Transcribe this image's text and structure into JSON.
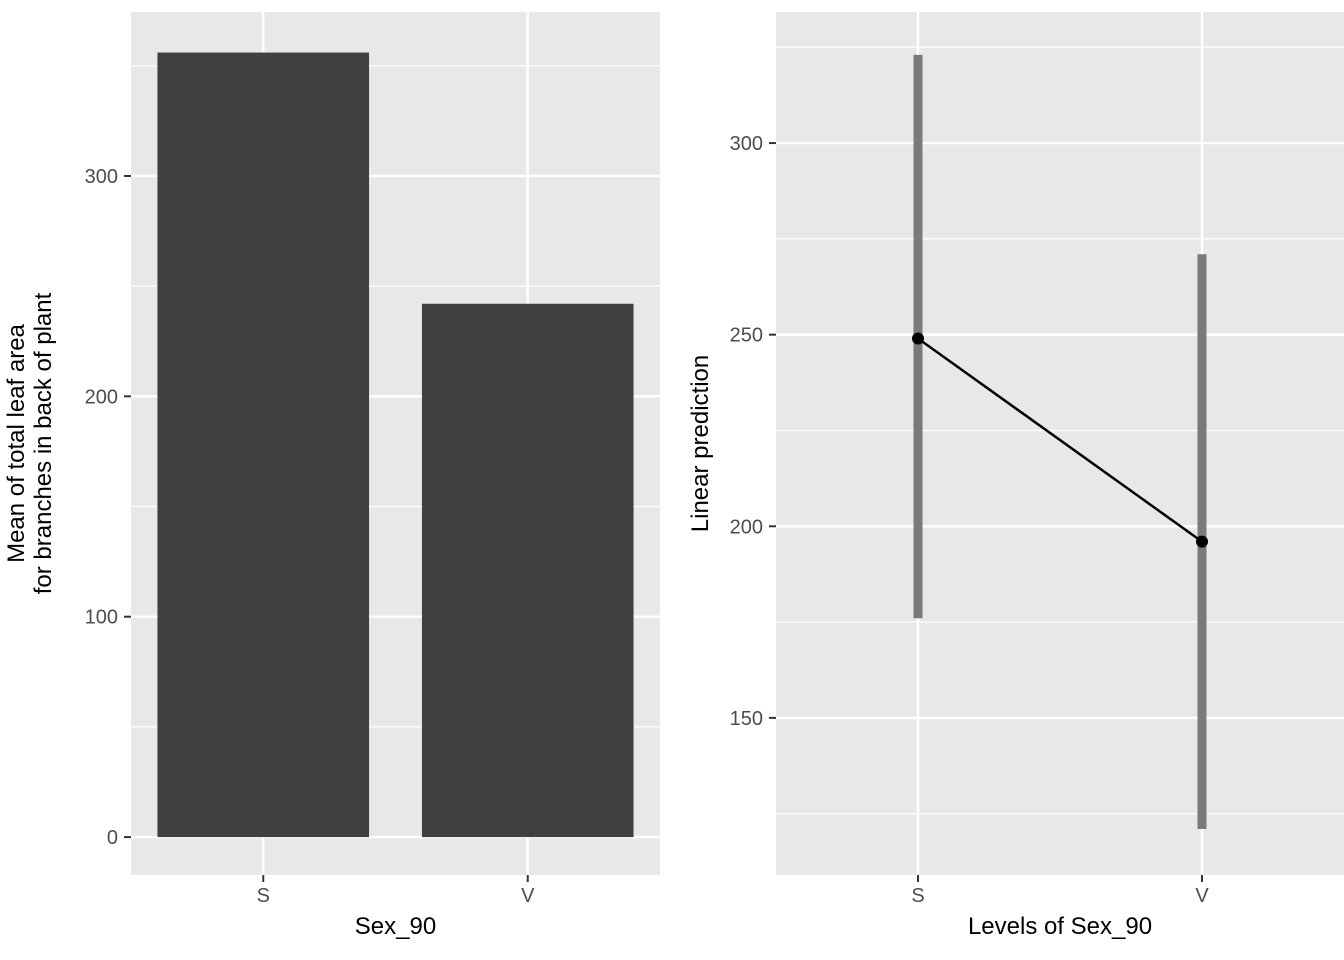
{
  "figure": {
    "background": "#FFFFFF",
    "description": "Two-panel figure: bar chart of group means and point-estimate plot with confidence intervals"
  },
  "chart_data": [
    {
      "type": "bar",
      "title": "",
      "categories": [
        "S",
        "V"
      ],
      "values": [
        356,
        242
      ],
      "xlabel": "Sex_90",
      "ylabel": "Mean of total leaf area for branches in back of plant",
      "ylabel_lines": [
        "Mean of total leaf area",
        "for branches in back of plant"
      ],
      "yticks": [
        0,
        100,
        200,
        300
      ],
      "ylim": [
        0,
        374
      ],
      "grid": true,
      "legend": "none",
      "colors": {
        "bar": "#404040",
        "panel_bg": "#E8E8E8",
        "grid": "#FFFFFF",
        "tick_text": "#4D4D4D",
        "axis_title": "#000000",
        "tick_mark": "#333333"
      }
    },
    {
      "type": "scatter",
      "subtype": "point-estimates-with-ci",
      "title": "",
      "categories": [
        "S",
        "V"
      ],
      "series": [
        {
          "name": "Linear prediction",
          "values": [
            249,
            196
          ]
        }
      ],
      "ci_low": [
        176,
        121
      ],
      "ci_high": [
        323,
        271
      ],
      "xlabel": "Levels of Sex_90",
      "ylabel": "Linear prediction",
      "yticks": [
        150,
        200,
        250,
        300
      ],
      "ylim": [
        109,
        334
      ],
      "grid": true,
      "legend": "none",
      "colors": {
        "point": "#000000",
        "line": "#000000",
        "ci": "#7A7A7A",
        "panel_bg": "#E8E8E8",
        "grid": "#FFFFFF",
        "tick_text": "#4D4D4D",
        "axis_title": "#000000",
        "tick_mark": "#333333"
      }
    }
  ]
}
